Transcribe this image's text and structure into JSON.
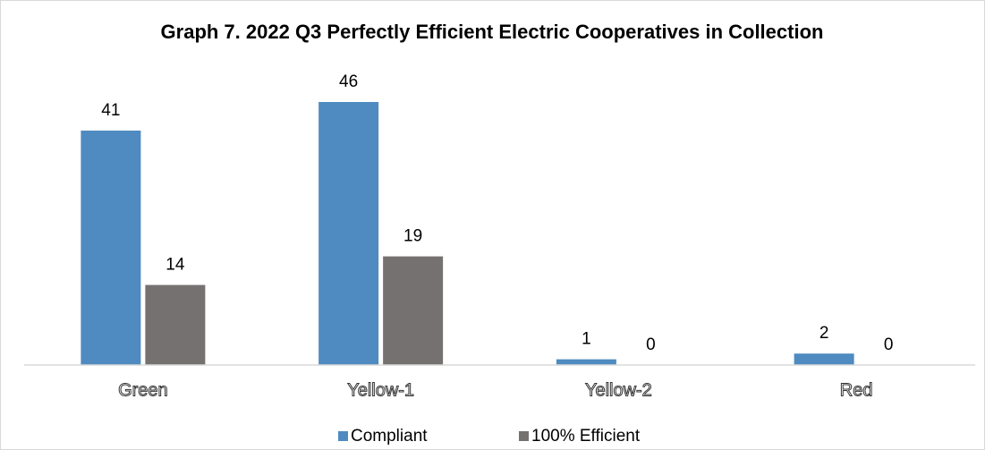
{
  "chart_data": {
    "type": "bar",
    "title": "Graph 7. 2022 Q3 Perfectly Efficient Electric Cooperatives in Collection",
    "categories": [
      "Green",
      "Yellow-1",
      "Yellow-2",
      "Red"
    ],
    "series": [
      {
        "name": "Compliant",
        "color": "#4f8bc0",
        "values": [
          41,
          46,
          1,
          2
        ]
      },
      {
        "name": "100% Efficient",
        "color": "#767171",
        "values": [
          14,
          19,
          0,
          0
        ]
      }
    ],
    "legend": "bottom"
  }
}
